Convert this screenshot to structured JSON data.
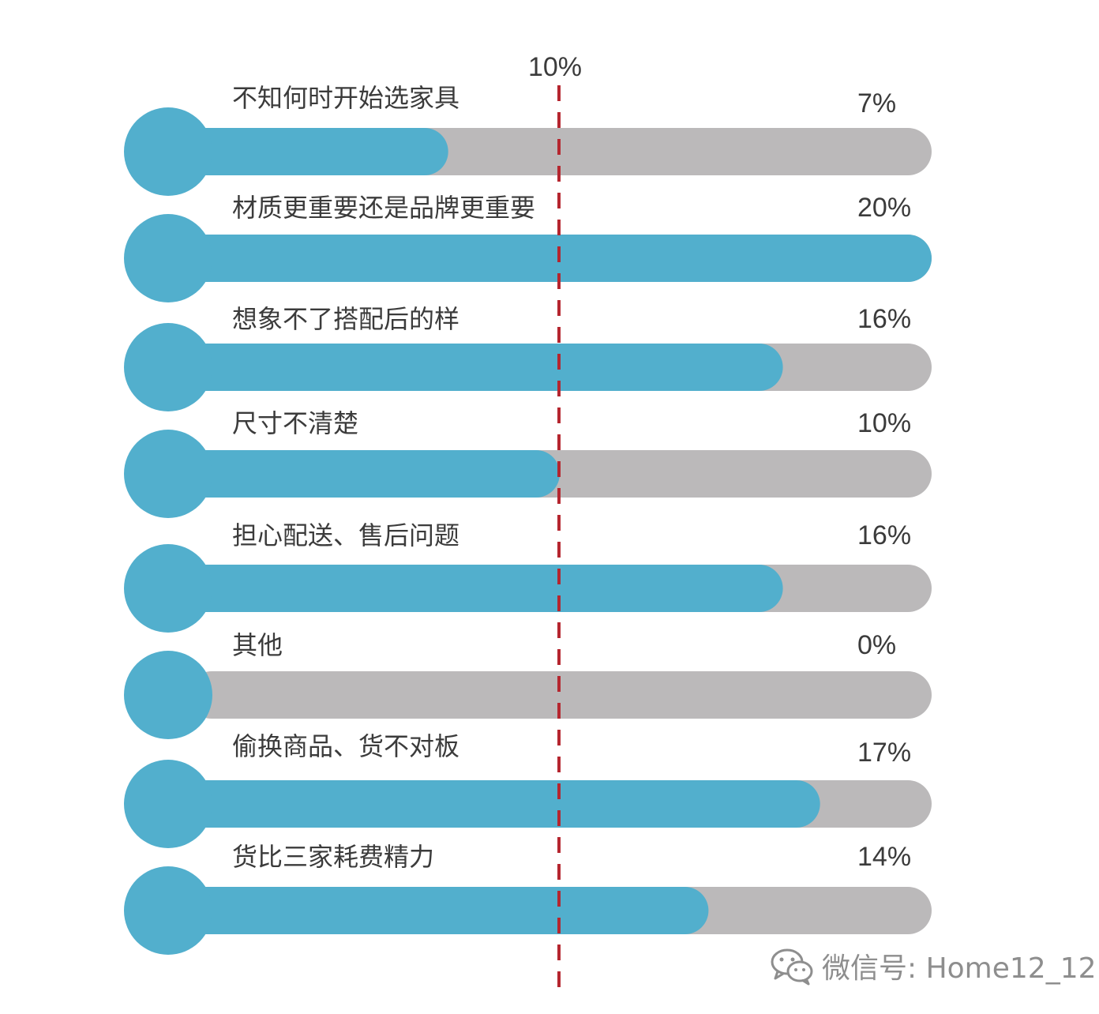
{
  "chart_data": {
    "type": "bar",
    "orientation": "horizontal",
    "max_value": 20,
    "reference_line": {
      "value": 10,
      "label": "10%"
    },
    "rows": [
      {
        "label": "不知何时开始选家具",
        "value": 7,
        "value_label": "7%"
      },
      {
        "label": "材质更重要还是品牌更重要",
        "value": 20,
        "value_label": "20%"
      },
      {
        "label": "想象不了搭配后的样",
        "value": 16,
        "value_label": "16%"
      },
      {
        "label": "尺寸不清楚",
        "value": 10,
        "value_label": "10%"
      },
      {
        "label": "担心配送、售后问题",
        "value": 16,
        "value_label": "16%"
      },
      {
        "label": "其他",
        "value": 0,
        "value_label": "0%"
      },
      {
        "label": "偷换商品、货不对板",
        "value": 17,
        "value_label": "17%"
      },
      {
        "label": "货比三家耗费精力",
        "value": 14,
        "value_label": "14%"
      }
    ],
    "colors": {
      "bar": "#52afcd",
      "track": "#bbb9ba",
      "reference": "#b5262f",
      "text": "#3b3b3b"
    }
  },
  "watermark": {
    "icon": "wechat-icon",
    "text": "微信号: Home12_12"
  }
}
